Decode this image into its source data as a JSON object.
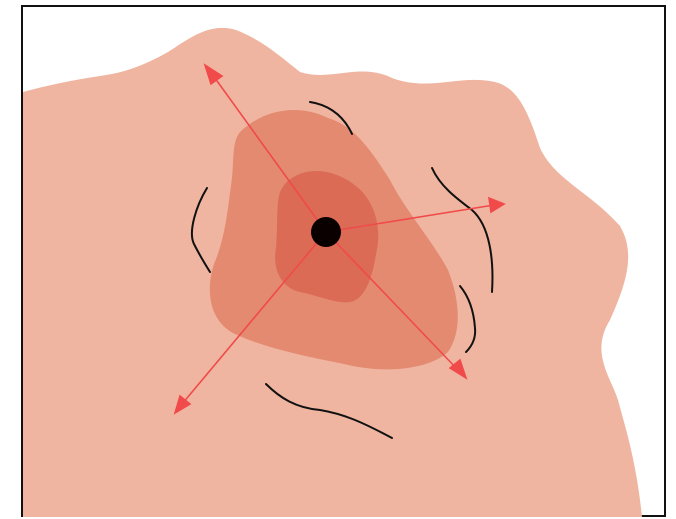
{
  "diagram": {
    "colors": {
      "background": "#ffffff",
      "frame_border": "#111111",
      "skin": "#efb5a0",
      "outer_redness": "#e48a70",
      "inner_redness": "#db6b55",
      "central_point": "#0a0000",
      "spread_arrows": "#f04a4a",
      "contour_lines": "#111111"
    },
    "icons": [
      "arrow-up-left-icon",
      "arrow-right-icon",
      "arrow-down-right-icon",
      "arrow-down-left-icon"
    ]
  }
}
